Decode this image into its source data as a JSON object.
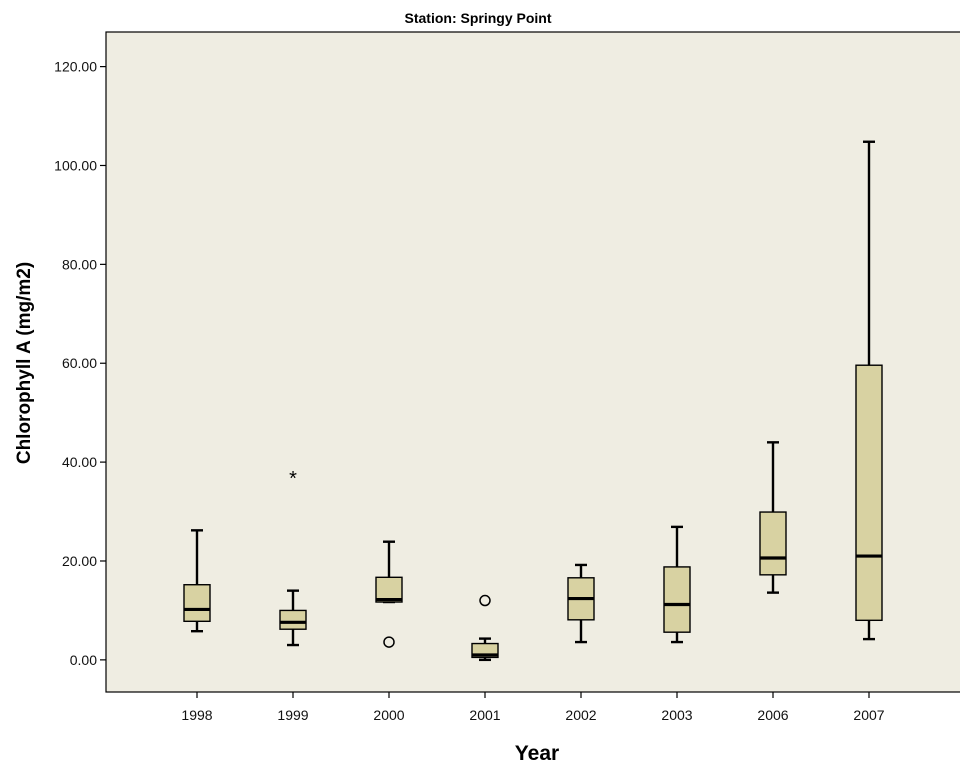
{
  "chart_data": {
    "type": "box",
    "title": "Station: Springy Point",
    "xlabel": "Year",
    "ylabel": "Chlorophyll A (mg/m2)",
    "ylim": [
      -6.5,
      127
    ],
    "yticks": [
      "0.00",
      "20.00",
      "40.00",
      "60.00",
      "80.00",
      "100.00",
      "120.00"
    ],
    "grid": false,
    "colors": {
      "plot_bg": "#efede2",
      "box_fill": "#d8d2a2",
      "stroke": "#000000"
    },
    "categories": [
      "1998",
      "1999",
      "2000",
      "2001",
      "2002",
      "2003",
      "2006",
      "2007"
    ],
    "boxes": [
      {
        "category": "1998",
        "whisker_low": 5.8,
        "q1": 7.8,
        "median": 10.2,
        "q3": 15.2,
        "whisker_high": 26.2,
        "outliers": [],
        "extremes": []
      },
      {
        "category": "1999",
        "whisker_low": 3.0,
        "q1": 6.2,
        "median": 7.6,
        "q3": 10.0,
        "whisker_high": 14.0,
        "outliers": [],
        "extremes": [
          37.0
        ]
      },
      {
        "category": "2000",
        "whisker_low": 11.7,
        "q1": 11.7,
        "median": 12.2,
        "q3": 16.7,
        "whisker_high": 23.9,
        "outliers": [
          3.6
        ],
        "extremes": []
      },
      {
        "category": "2001",
        "whisker_low": 0.0,
        "q1": 0.5,
        "median": 1.0,
        "q3": 3.3,
        "whisker_high": 4.3,
        "outliers": [
          12.0
        ],
        "extremes": []
      },
      {
        "category": "2002",
        "whisker_low": 3.6,
        "q1": 8.1,
        "median": 12.4,
        "q3": 16.6,
        "whisker_high": 19.2,
        "outliers": [],
        "extremes": []
      },
      {
        "category": "2003",
        "whisker_low": 3.6,
        "q1": 5.6,
        "median": 11.2,
        "q3": 18.8,
        "whisker_high": 26.9,
        "outliers": [],
        "extremes": []
      },
      {
        "category": "2006",
        "whisker_low": 13.6,
        "q1": 17.2,
        "median": 20.6,
        "q3": 29.9,
        "whisker_high": 44.0,
        "outliers": [],
        "extremes": []
      },
      {
        "category": "2007",
        "whisker_low": 4.2,
        "q1": 8.0,
        "median": 21.0,
        "q3": 59.6,
        "whisker_high": 104.8,
        "outliers": [],
        "extremes": []
      }
    ]
  }
}
